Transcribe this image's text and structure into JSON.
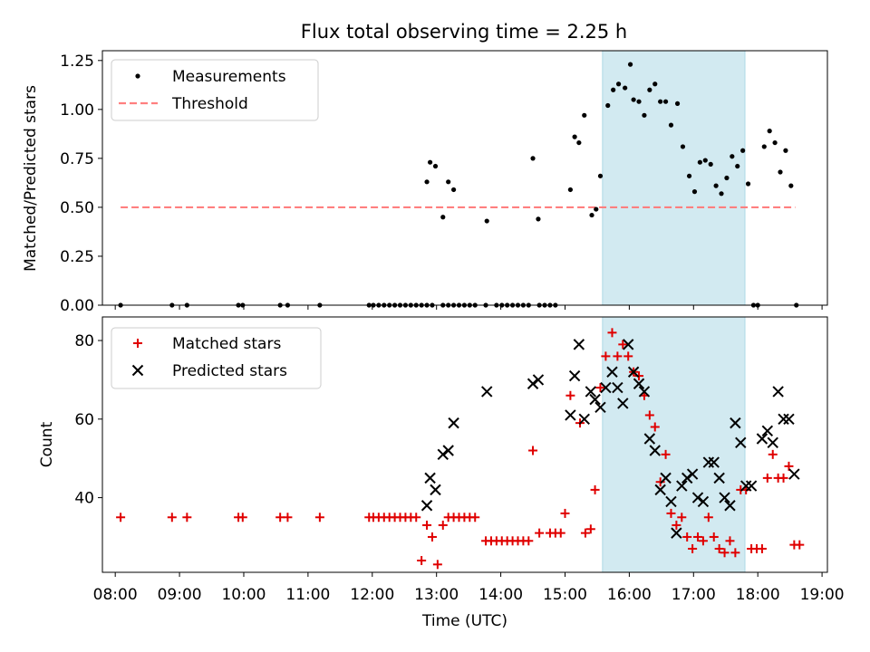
{
  "figure": {
    "title": "Flux total observing time = 2.25 h"
  },
  "colors": {
    "measurement": "#000000",
    "threshold": "#ff7f7f",
    "matched": "#e00000",
    "predicted": "#000000",
    "highlight": "#add8e6"
  },
  "chart_data": [
    {
      "type": "scatter",
      "ylabel": "Matched/Predicted stars",
      "xlabel": "",
      "xlim": [
        "07:48",
        "19:05"
      ],
      "ylim": [
        0,
        1.3
      ],
      "yticks": [
        0.0,
        0.25,
        0.5,
        0.75,
        1.0,
        1.25
      ],
      "ytick_labels": [
        "0.00",
        "0.25",
        "0.50",
        "0.75",
        "1.00",
        "1.25"
      ],
      "legend_position": "upper-left",
      "highlight_span": [
        "15:35",
        "17:48"
      ],
      "series": [
        {
          "name": "Measurements",
          "marker": "dot",
          "x": [
            "08:05",
            "08:53",
            "09:07",
            "09:55",
            "09:59",
            "10:34",
            "10:41",
            "11:11",
            "11:57",
            "12:01",
            "12:06",
            "12:11",
            "12:16",
            "12:21",
            "12:26",
            "12:31",
            "12:36",
            "12:41",
            "12:46",
            "12:51",
            "12:56",
            "13:06",
            "13:11",
            "13:16",
            "13:21",
            "13:26",
            "13:31",
            "13:36",
            "13:46",
            "13:56",
            "14:01",
            "14:06",
            "14:11",
            "14:16",
            "14:21",
            "14:26",
            "14:36",
            "14:41",
            "14:46",
            "14:51",
            "12:51",
            "12:54",
            "12:59",
            "13:06",
            "13:11",
            "13:16",
            "13:47",
            "14:30",
            "14:35",
            "15:05",
            "15:09",
            "15:13",
            "15:18",
            "15:25",
            "15:29",
            "15:33",
            "15:40",
            "15:45",
            "15:50",
            "15:56",
            "16:01",
            "16:04",
            "16:09",
            "16:14",
            "16:19",
            "16:24",
            "16:29",
            "16:34",
            "16:39",
            "16:45",
            "16:50",
            "16:56",
            "17:01",
            "17:06",
            "17:11",
            "17:16",
            "17:21",
            "17:26",
            "17:31",
            "17:36",
            "17:41",
            "17:46",
            "17:51",
            "17:56",
            "18:00",
            "18:06",
            "18:11",
            "18:16",
            "18:21",
            "18:26",
            "18:31",
            "18:36"
          ],
          "y": [
            0,
            0,
            0,
            0,
            0,
            0,
            0,
            0,
            0,
            0,
            0,
            0,
            0,
            0,
            0,
            0,
            0,
            0,
            0,
            0,
            0,
            0,
            0,
            0,
            0,
            0,
            0,
            0,
            0,
            0,
            0,
            0,
            0,
            0,
            0,
            0,
            0,
            0,
            0,
            0,
            0.63,
            0.73,
            0.71,
            0.45,
            0.63,
            0.59,
            0.43,
            0.75,
            0.44,
            0.59,
            0.86,
            0.83,
            0.97,
            0.46,
            0.49,
            0.66,
            1.02,
            1.1,
            1.13,
            1.11,
            1.23,
            1.05,
            1.04,
            0.97,
            1.1,
            1.13,
            1.04,
            1.04,
            0.92,
            1.03,
            0.81,
            0.66,
            0.58,
            0.73,
            0.74,
            0.72,
            0.61,
            0.57,
            0.65,
            0.76,
            0.71,
            0.79,
            0.62,
            0,
            0,
            0.81,
            0.89,
            0.83,
            0.68,
            0.79,
            0.61,
            0
          ]
        },
        {
          "name": "Threshold",
          "style": "dashed",
          "x": [
            "08:05",
            "18:35"
          ],
          "y": [
            0.5,
            0.5
          ]
        }
      ]
    },
    {
      "type": "scatter",
      "ylabel": "Count",
      "xlabel": "Time (UTC)",
      "xlim": [
        "07:48",
        "19:05"
      ],
      "ylim": [
        21,
        86
      ],
      "yticks": [
        40,
        60,
        80
      ],
      "ytick_labels": [
        "40",
        "60",
        "80"
      ],
      "xticks": [
        "08:00",
        "09:00",
        "10:00",
        "11:00",
        "12:00",
        "13:00",
        "14:00",
        "15:00",
        "16:00",
        "17:00",
        "18:00",
        "19:00"
      ],
      "legend_position": "upper-left",
      "highlight_span": [
        "15:35",
        "17:48"
      ],
      "series": [
        {
          "name": "Matched stars",
          "marker": "plus",
          "x": [
            "08:05",
            "08:53",
            "09:07",
            "09:55",
            "09:59",
            "10:34",
            "10:41",
            "11:11",
            "11:57",
            "12:01",
            "12:06",
            "12:11",
            "12:16",
            "12:21",
            "12:26",
            "12:31",
            "12:36",
            "12:41",
            "12:46",
            "12:51",
            "12:56",
            "13:01",
            "13:06",
            "13:11",
            "13:16",
            "13:21",
            "13:26",
            "13:31",
            "13:36",
            "13:46",
            "13:51",
            "13:56",
            "14:01",
            "14:06",
            "14:11",
            "14:16",
            "14:21",
            "14:26",
            "14:30",
            "14:36",
            "14:46",
            "14:51",
            "14:56",
            "15:00",
            "15:05",
            "15:14",
            "15:19",
            "15:24",
            "15:28",
            "15:33",
            "15:38",
            "15:44",
            "15:49",
            "15:54",
            "15:59",
            "16:04",
            "16:09",
            "16:14",
            "16:19",
            "16:24",
            "16:29",
            "16:34",
            "16:39",
            "16:44",
            "16:49",
            "16:54",
            "16:59",
            "17:04",
            "17:09",
            "17:14",
            "17:19",
            "17:24",
            "17:29",
            "17:34",
            "17:39",
            "17:44",
            "17:49",
            "17:54",
            "17:59",
            "18:04",
            "18:09",
            "18:14",
            "18:19",
            "18:24",
            "18:29",
            "18:34",
            "18:39"
          ],
          "y": [
            35,
            35,
            35,
            35,
            35,
            35,
            35,
            35,
            35,
            35,
            35,
            35,
            35,
            35,
            35,
            35,
            35,
            35,
            24,
            33,
            30,
            23,
            33,
            35,
            35,
            35,
            35,
            35,
            35,
            29,
            29,
            29,
            29,
            29,
            29,
            29,
            29,
            29,
            52,
            31,
            31,
            31,
            31,
            36,
            66,
            59,
            31,
            32,
            42,
            68,
            76,
            82,
            76,
            79,
            76,
            72,
            71,
            66,
            61,
            58,
            44,
            51,
            36,
            33,
            35,
            30,
            27,
            30,
            29,
            35,
            30,
            27,
            26,
            29,
            26,
            42,
            42,
            27,
            27,
            27,
            45,
            51,
            45,
            45,
            48,
            28,
            28
          ]
        },
        {
          "name": "Predicted stars",
          "marker": "x",
          "x": [
            "12:51",
            "12:54",
            "12:59",
            "13:06",
            "13:11",
            "13:16",
            "13:47",
            "14:30",
            "14:35",
            "15:05",
            "15:09",
            "15:13",
            "15:18",
            "15:24",
            "15:28",
            "15:33",
            "15:38",
            "15:44",
            "15:49",
            "15:54",
            "15:59",
            "16:04",
            "16:09",
            "16:14",
            "16:19",
            "16:24",
            "16:29",
            "16:34",
            "16:39",
            "16:44",
            "16:49",
            "16:54",
            "16:59",
            "17:04",
            "17:09",
            "17:14",
            "17:19",
            "17:24",
            "17:29",
            "17:34",
            "17:39",
            "17:44",
            "17:49",
            "17:54",
            "18:04",
            "18:09",
            "18:14",
            "18:19",
            "18:24",
            "18:29",
            "18:34"
          ],
          "y": [
            38,
            45,
            42,
            51,
            52,
            59,
            67,
            69,
            70,
            61,
            71,
            79,
            60,
            67,
            65,
            63,
            68,
            72,
            68,
            64,
            79,
            72,
            69,
            67,
            55,
            52,
            42,
            45,
            39,
            31,
            43,
            45,
            46,
            40,
            39,
            49,
            49,
            45,
            40,
            38,
            59,
            54,
            43,
            43,
            55,
            57,
            54,
            67,
            60,
            60,
            46
          ]
        }
      ]
    }
  ]
}
